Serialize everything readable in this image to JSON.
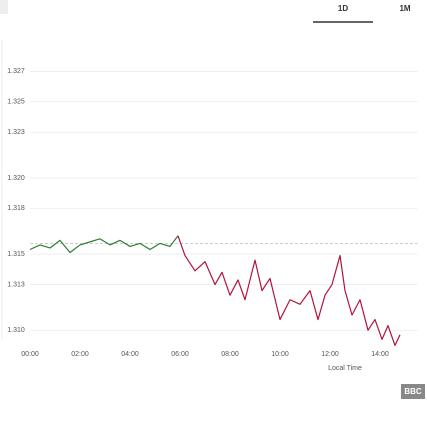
{
  "tabs": [
    "1D",
    "1M"
  ],
  "logo": "BBC",
  "chart_data": {
    "type": "line",
    "x_label": "Local Time",
    "x": [
      0,
      0.4,
      0.8,
      1.2,
      1.6,
      2,
      2.4,
      2.8,
      3.2,
      3.6,
      4,
      4.4,
      4.8,
      5.2,
      5.6,
      5.92,
      6.2,
      6.6,
      7,
      7.4,
      7.68,
      8,
      8.32,
      8.6,
      9,
      9.28,
      9.6,
      10,
      10.4,
      10.8,
      11.2,
      11.52,
      11.8,
      12.08,
      12.4,
      12.6,
      12.88,
      13.2,
      13.52,
      13.8,
      14.08,
      14.32,
      14.6,
      14.8
    ],
    "series": [
      {
        "color": "#2e7d32",
        "values": [
          1.3153,
          1.3156,
          1.3154,
          1.3159,
          1.3151,
          1.3156,
          1.3158,
          1.316,
          1.3156,
          1.3159,
          1.3155,
          1.3157,
          1.3153,
          1.3157,
          1.3155,
          1.3162,
          null,
          null,
          null,
          null,
          null,
          null,
          null,
          null,
          null,
          null,
          null,
          null,
          null,
          null,
          null,
          null,
          null,
          null,
          null,
          null,
          null,
          null,
          null,
          null,
          null,
          null,
          null,
          null
        ]
      },
      {
        "color": "#b0143c",
        "values": [
          null,
          null,
          null,
          null,
          null,
          null,
          null,
          null,
          null,
          null,
          null,
          null,
          null,
          null,
          null,
          1.3162,
          1.3149,
          1.3139,
          1.3145,
          1.313,
          1.3138,
          1.3123,
          1.3133,
          1.312,
          1.3146,
          1.3126,
          1.3134,
          1.3107,
          1.312,
          1.3117,
          1.3126,
          1.3107,
          1.3123,
          1.313,
          1.3149,
          1.3126,
          1.311,
          1.312,
          1.31,
          1.3107,
          1.3094,
          1.3103,
          1.309,
          1.3097
        ]
      }
    ],
    "reference_line": 1.3157,
    "xlim": [
      -1.1,
      15.5
    ],
    "ylim": [
      1.3087,
      1.3284
    ],
    "xticks": [
      {
        "value": 0,
        "label": "00:00"
      },
      {
        "value": 2,
        "label": "02:00"
      },
      {
        "value": 4,
        "label": "04:00"
      },
      {
        "value": 6,
        "label": "06:00"
      },
      {
        "value": 8,
        "label": "08:00"
      },
      {
        "value": 10,
        "label": "10:00"
      },
      {
        "value": 12,
        "label": "12:00"
      },
      {
        "value": 14,
        "label": "14:00"
      }
    ],
    "yticks": [
      1.327,
      1.325,
      1.323,
      {
        "value": 1.32,
        "label": "1.320"
      },
      1.318,
      1.315,
      1.313,
      {
        "value": 1.31,
        "label": "1.310"
      }
    ],
    "grid": true
  }
}
